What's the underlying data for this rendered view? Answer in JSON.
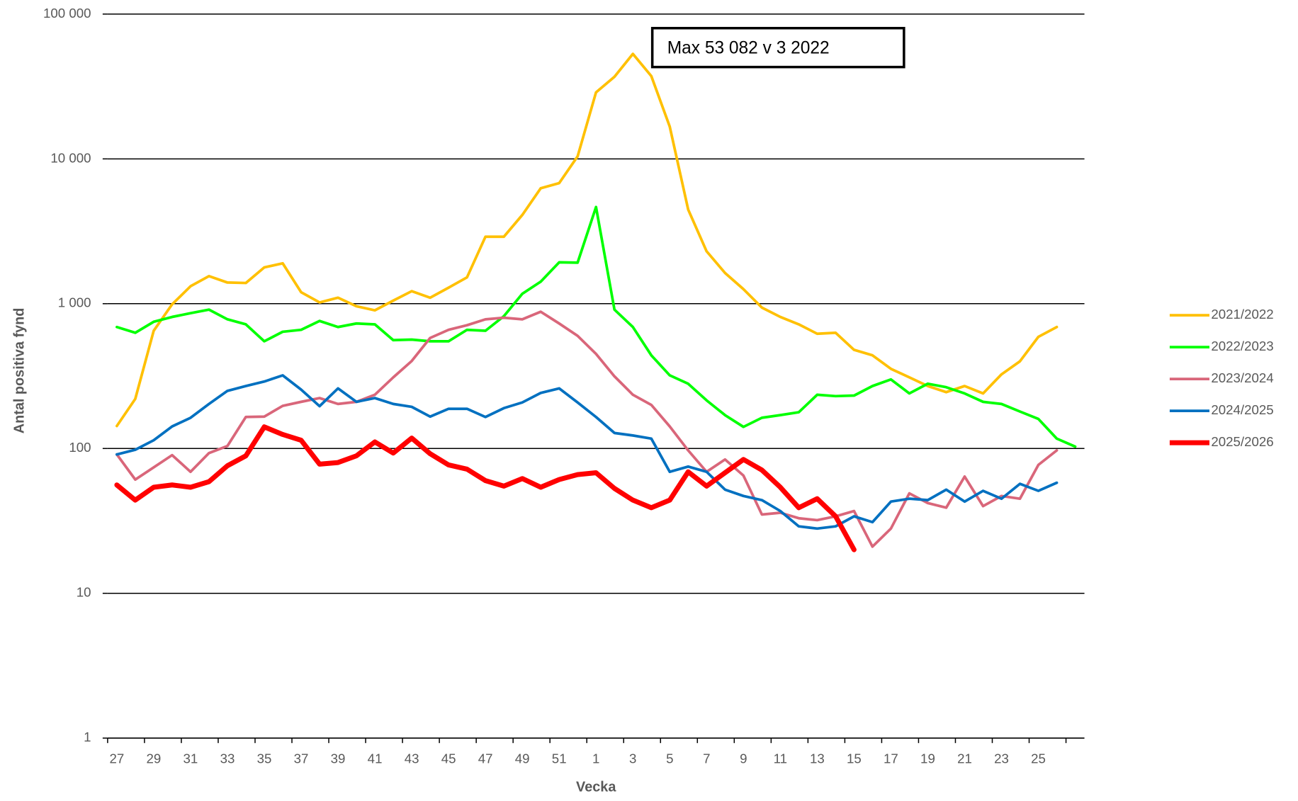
{
  "chart_data": {
    "type": "line",
    "y_label": "Antal positiva fynd",
    "x_label": "Vecka",
    "log_scale": true,
    "grid": true,
    "legend": "right",
    "annotation": "Max 53 082 v 3 2022",
    "ylim": [
      1,
      100000
    ],
    "yticks": [
      1,
      10,
      100,
      {
        "value": 1000,
        "label": "1 000"
      },
      {
        "value": 10000,
        "label": "10 000"
      },
      {
        "value": 100000,
        "label": "100 000"
      }
    ],
    "categories": [
      "27",
      null,
      "29",
      null,
      "31",
      null,
      "33",
      null,
      "35",
      null,
      "37",
      null,
      "39",
      null,
      "41",
      null,
      "43",
      null,
      "45",
      null,
      "47",
      null,
      "49",
      null,
      "51",
      null,
      "1",
      null,
      "3",
      null,
      "5",
      null,
      "7",
      null,
      "9",
      null,
      "11",
      null,
      "13",
      null,
      "15",
      null,
      "17",
      null,
      "19",
      null,
      "21",
      null,
      "23",
      null,
      "25",
      null,
      null
    ],
    "series": [
      {
        "name": "2021/2022",
        "color": "#ffc000",
        "values": [
          143,
          220,
          650,
          990,
          1320,
          1550,
          1400,
          1390,
          1780,
          1900,
          1200,
          1020,
          1100,
          960,
          900,
          1050,
          1220,
          1100,
          1290,
          1520,
          2900,
          2900,
          4100,
          6270,
          6800,
          10400,
          28800,
          36900,
          53082,
          37300,
          16700,
          4470,
          2300,
          1630,
          1260,
          940,
          810,
          720,
          620,
          630,
          480,
          440,
          355,
          310,
          270,
          245,
          270,
          240,
          325,
          400,
          590,
          690,
          null
        ]
      },
      {
        "name": "2022/2023",
        "color": "#00ff00",
        "values": [
          690,
          630,
          750,
          810,
          860,
          910,
          780,
          720,
          550,
          640,
          660,
          760,
          690,
          730,
          720,
          560,
          565,
          550,
          550,
          660,
          650,
          820,
          1170,
          1420,
          1930,
          1920,
          4650,
          910,
          690,
          440,
          320,
          280,
          215,
          170,
          141,
          163,
          170,
          178,
          235,
          230,
          232,
          270,
          300,
          240,
          280,
          265,
          240,
          210,
          203,
          180,
          160,
          117,
          103
        ]
      },
      {
        "name": "2023/2024",
        "color": "#d9667a",
        "values": [
          91,
          61,
          74,
          90,
          69,
          93,
          104,
          165,
          166,
          197,
          210,
          223,
          203,
          210,
          235,
          310,
          402,
          580,
          660,
          710,
          780,
          800,
          780,
          880,
          730,
          600,
          450,
          315,
          235,
          200,
          142,
          97,
          69,
          84,
          65,
          35,
          36,
          33,
          32,
          34,
          37,
          21,
          28,
          49,
          42,
          39,
          64,
          40,
          47,
          45,
          77,
          97,
          null
        ]
      },
      {
        "name": "2024/2025",
        "color": "#0070c0",
        "values": [
          91,
          98,
          114,
          142,
          163,
          203,
          250,
          270,
          290,
          320,
          255,
          196,
          260,
          210,
          223,
          203,
          194,
          166,
          188,
          188,
          165,
          190,
          208,
          242,
          260,
          208,
          165,
          128,
          123,
          117,
          69,
          75,
          69,
          52,
          47,
          44,
          37,
          29,
          28,
          29,
          34,
          31,
          43,
          45,
          44,
          52,
          43,
          51,
          45,
          57,
          51,
          58,
          null
        ]
      },
      {
        "name": "2025/2026",
        "color": "#ff0000",
        "width": 6,
        "values": [
          56,
          44,
          54,
          56,
          54,
          59,
          76,
          89,
          141,
          125,
          114,
          78,
          80,
          89,
          111,
          93,
          118,
          92,
          77,
          72,
          60,
          55,
          62,
          54,
          61,
          66,
          68,
          53,
          44,
          39,
          44,
          69,
          55,
          68,
          84,
          71,
          54,
          39,
          45,
          34,
          20,
          null,
          null,
          null,
          null,
          null,
          null,
          null,
          null,
          null,
          null,
          null,
          null
        ]
      }
    ]
  }
}
